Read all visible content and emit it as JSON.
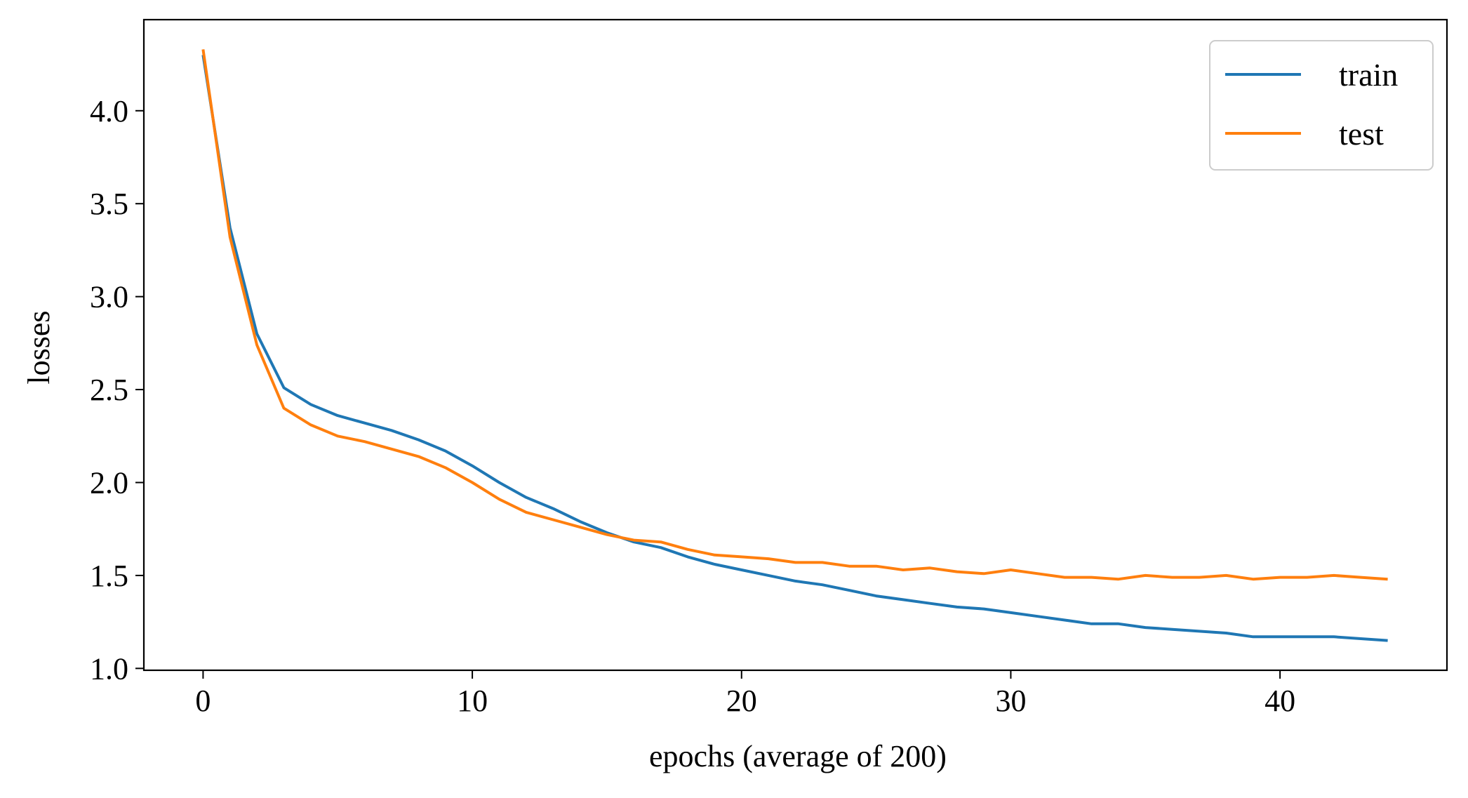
{
  "chart_data": {
    "type": "line",
    "title": "",
    "xlabel": "epochs (average of 200)",
    "ylabel": "losses",
    "xlim": [
      -2.2,
      46.2
    ],
    "ylim": [
      0.99,
      4.49
    ],
    "xticks": [
      0,
      10,
      20,
      30,
      40
    ],
    "xtick_labels": [
      "0",
      "10",
      "20",
      "30",
      "40"
    ],
    "yticks": [
      1.0,
      1.5,
      2.0,
      2.5,
      3.0,
      3.5,
      4.0
    ],
    "ytick_labels": [
      "1.0",
      "1.5",
      "2.0",
      "2.5",
      "3.0",
      "3.5",
      "4.0"
    ],
    "grid": false,
    "legend": "top-right",
    "x": [
      0,
      1,
      2,
      3,
      4,
      5,
      6,
      7,
      8,
      9,
      10,
      11,
      12,
      13,
      14,
      15,
      16,
      17,
      18,
      19,
      20,
      21,
      22,
      23,
      24,
      25,
      26,
      27,
      28,
      29,
      30,
      31,
      32,
      33,
      34,
      35,
      36,
      37,
      38,
      39,
      40,
      41,
      42,
      43,
      44
    ],
    "series": [
      {
        "name": "train",
        "color": "#1f77b4",
        "values": [
          4.3,
          3.37,
          2.8,
          2.51,
          2.42,
          2.36,
          2.32,
          2.28,
          2.23,
          2.17,
          2.09,
          2.0,
          1.92,
          1.86,
          1.79,
          1.73,
          1.68,
          1.65,
          1.6,
          1.56,
          1.53,
          1.5,
          1.47,
          1.45,
          1.42,
          1.39,
          1.37,
          1.35,
          1.33,
          1.32,
          1.3,
          1.28,
          1.26,
          1.24,
          1.24,
          1.22,
          1.21,
          1.2,
          1.19,
          1.17,
          1.17,
          1.17,
          1.17,
          1.16,
          1.15
        ]
      },
      {
        "name": "test",
        "color": "#ff7f0e",
        "values": [
          4.33,
          3.32,
          2.74,
          2.4,
          2.31,
          2.25,
          2.22,
          2.18,
          2.14,
          2.08,
          2.0,
          1.91,
          1.84,
          1.8,
          1.76,
          1.72,
          1.69,
          1.68,
          1.64,
          1.61,
          1.6,
          1.59,
          1.57,
          1.57,
          1.55,
          1.55,
          1.53,
          1.54,
          1.52,
          1.51,
          1.53,
          1.51,
          1.49,
          1.49,
          1.48,
          1.5,
          1.49,
          1.49,
          1.5,
          1.48,
          1.49,
          1.49,
          1.5,
          1.49,
          1.48
        ]
      }
    ]
  }
}
